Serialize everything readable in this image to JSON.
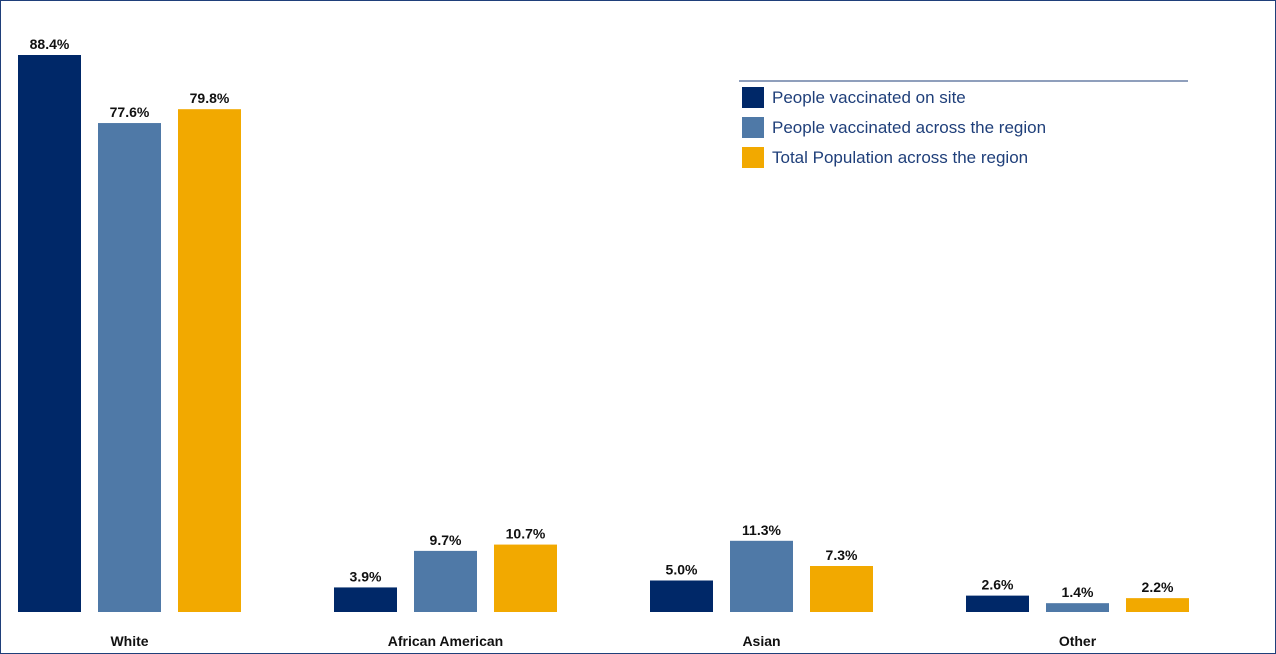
{
  "chart_data": {
    "type": "bar",
    "title": "",
    "xlabel": "",
    "ylabel": "",
    "ylim": [
      0,
      88.4
    ],
    "grid": false,
    "legend_position": "top-right",
    "categories": [
      "White",
      "African American",
      "Asian",
      "Other"
    ],
    "series": [
      {
        "name": "People vaccinated on site",
        "color": "#002868",
        "values": [
          88.4,
          3.9,
          5.0,
          2.6
        ],
        "labels": [
          "88.4%",
          "3.9%",
          "5.0%",
          "2.6%"
        ]
      },
      {
        "name": "People vaccinated across the region",
        "color": "#4f79a7",
        "values": [
          77.6,
          9.7,
          11.3,
          1.4
        ],
        "labels": [
          "77.6%",
          "9.7%",
          "11.3%",
          "1.4%"
        ]
      },
      {
        "name": "Total Population across the region",
        "color": "#f2a900",
        "values": [
          79.8,
          10.7,
          7.3,
          2.2
        ],
        "labels": [
          "79.8%",
          "10.7%",
          "7.3%",
          "2.2%"
        ]
      }
    ]
  }
}
